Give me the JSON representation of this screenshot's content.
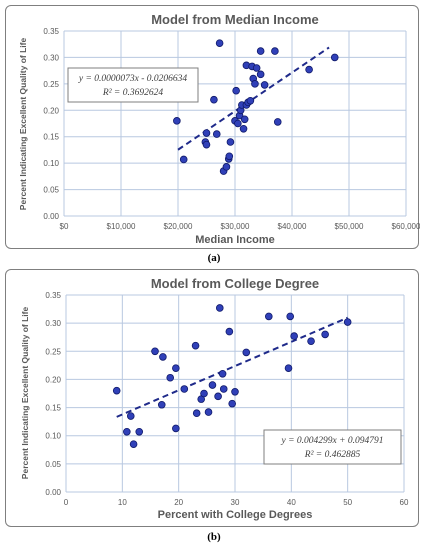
{
  "captions": {
    "a": "(a)",
    "b": "(b)"
  },
  "colors": {
    "marker_fill": "#3040b8",
    "marker_edge": "#101a6a",
    "trend": "#1f2a8a",
    "grid": "#b8c8e0",
    "title": "#595959",
    "axis_text": "#595959"
  },
  "chart_data": [
    {
      "type": "scatter",
      "title": "Model from Median Income",
      "xlabel": "Median Income",
      "ylabel": "Percent Indicating Excellent Quality of Life",
      "xlim": [
        0,
        60000
      ],
      "ylim": [
        0,
        0.35
      ],
      "x_ticks": [
        0,
        10000,
        20000,
        30000,
        40000,
        50000,
        60000
      ],
      "x_tick_labels": [
        "$0",
        "$10,000",
        "$20,000",
        "$30,000",
        "$40,000",
        "$50,000",
        "$60,000"
      ],
      "y_ticks": [
        0,
        0.05,
        0.1,
        0.15,
        0.2,
        0.25,
        0.3,
        0.35
      ],
      "y_tick_labels": [
        "0.00",
        "0.05",
        "0.10",
        "0.15",
        "0.20",
        "0.25",
        "0.30",
        "0.35"
      ],
      "grid": true,
      "trendline": {
        "slope": 7.3e-06,
        "intercept": -0.0206634,
        "x_range": [
          20000,
          46500
        ]
      },
      "equation": "y = 0.0000073x - 0.0206634",
      "r_squared": "R² = 0.3692624",
      "annotation_position": "upper-left",
      "points": [
        [
          19800,
          0.18
        ],
        [
          21000,
          0.107
        ],
        [
          24800,
          0.14
        ],
        [
          25000,
          0.135
        ],
        [
          25000,
          0.157
        ],
        [
          26300,
          0.22
        ],
        [
          26800,
          0.155
        ],
        [
          27300,
          0.327
        ],
        [
          28000,
          0.085
        ],
        [
          28500,
          0.093
        ],
        [
          28900,
          0.108
        ],
        [
          29000,
          0.113
        ],
        [
          29200,
          0.14
        ],
        [
          30000,
          0.18
        ],
        [
          30200,
          0.237
        ],
        [
          30500,
          0.175
        ],
        [
          30800,
          0.19
        ],
        [
          31000,
          0.2
        ],
        [
          31200,
          0.21
        ],
        [
          31500,
          0.165
        ],
        [
          31700,
          0.183
        ],
        [
          32000,
          0.21
        ],
        [
          32300,
          0.215
        ],
        [
          32000,
          0.285
        ],
        [
          32700,
          0.218
        ],
        [
          33000,
          0.283
        ],
        [
          33200,
          0.26
        ],
        [
          33500,
          0.25
        ],
        [
          33800,
          0.28
        ],
        [
          34500,
          0.268
        ],
        [
          34500,
          0.312
        ],
        [
          35200,
          0.248
        ],
        [
          37000,
          0.312
        ],
        [
          37500,
          0.178
        ],
        [
          43000,
          0.277
        ],
        [
          47500,
          0.3
        ]
      ]
    },
    {
      "type": "scatter",
      "title": "Model from College Degree",
      "xlabel": "Percent with College Degrees",
      "ylabel": "Percent Indicating Excellent Quality of Life",
      "xlim": [
        0,
        60
      ],
      "ylim": [
        0,
        0.35
      ],
      "x_ticks": [
        0,
        10,
        20,
        30,
        40,
        50,
        60
      ],
      "x_tick_labels": [
        "0",
        "10",
        "20",
        "30",
        "40",
        "50",
        "60"
      ],
      "y_ticks": [
        0,
        0.05,
        0.1,
        0.15,
        0.2,
        0.25,
        0.3,
        0.35
      ],
      "y_tick_labels": [
        "0.00",
        "0.05",
        "0.10",
        "0.15",
        "0.20",
        "0.25",
        "0.30",
        "0.35"
      ],
      "grid": true,
      "trendline": {
        "slope": 0.004299,
        "intercept": 0.094791,
        "x_range": [
          9,
          50
        ]
      },
      "equation": "y = 0.004299x + 0.094791",
      "r_squared": "R² = 0.462885",
      "annotation_position": "lower-right",
      "points": [
        [
          9,
          0.18
        ],
        [
          10.8,
          0.107
        ],
        [
          11.5,
          0.135
        ],
        [
          12,
          0.085
        ],
        [
          13,
          0.107
        ],
        [
          15.8,
          0.25
        ],
        [
          17,
          0.155
        ],
        [
          17.2,
          0.24
        ],
        [
          18.5,
          0.203
        ],
        [
          19.5,
          0.113
        ],
        [
          19.5,
          0.22
        ],
        [
          21,
          0.183
        ],
        [
          23,
          0.26
        ],
        [
          23.2,
          0.14
        ],
        [
          24,
          0.165
        ],
        [
          24.5,
          0.175
        ],
        [
          25.3,
          0.142
        ],
        [
          26,
          0.19
        ],
        [
          27,
          0.17
        ],
        [
          27.3,
          0.327
        ],
        [
          27.8,
          0.21
        ],
        [
          28,
          0.183
        ],
        [
          29,
          0.285
        ],
        [
          29.5,
          0.157
        ],
        [
          30,
          0.178
        ],
        [
          32,
          0.248
        ],
        [
          36,
          0.312
        ],
        [
          39.5,
          0.22
        ],
        [
          39.8,
          0.312
        ],
        [
          40.5,
          0.277
        ],
        [
          43.5,
          0.268
        ],
        [
          46,
          0.28
        ],
        [
          50,
          0.302
        ]
      ]
    }
  ]
}
